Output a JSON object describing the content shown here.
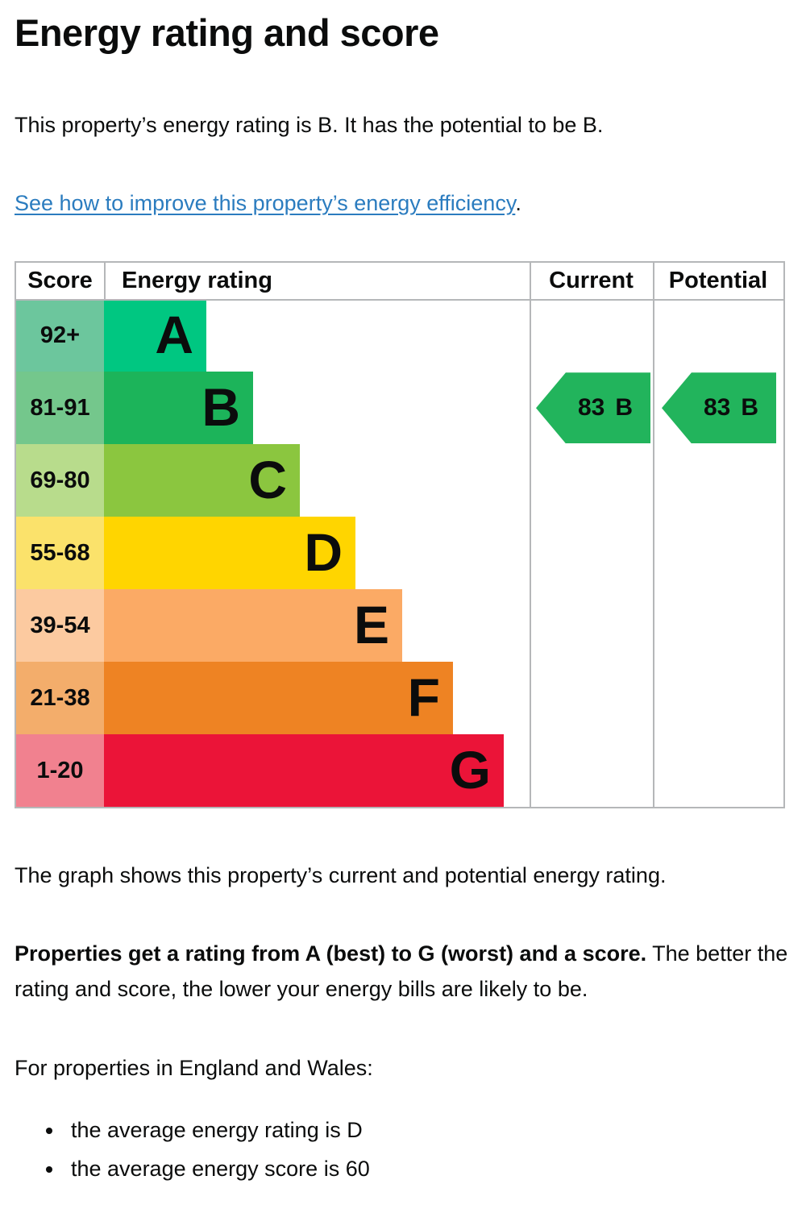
{
  "page": {
    "title": "Energy rating and score",
    "intro": "This property’s energy rating is B. It has the potential to be B.",
    "link_text": "See how to improve this property’s energy efficiency",
    "link_suffix": ".",
    "caption": "The graph shows this property’s current and potential energy rating.",
    "explain_bold": "Properties get a rating from A (best) to G (worst) and a score.",
    "explain_rest": " The better the rating and score, the lower your energy bills are likely to be.",
    "regional_heading": "For properties in England and Wales:",
    "bullets": [
      "the average energy rating is D",
      "the average energy score is 60"
    ]
  },
  "chart": {
    "headers": {
      "score": "Score",
      "rating": "Energy rating",
      "current": "Current",
      "potential": "Potential"
    },
    "bands": [
      {
        "score": "92+",
        "letter": "A",
        "color": "#00c781",
        "score_bg": "#6cc69d",
        "width_pct": 24
      },
      {
        "score": "81-91",
        "letter": "B",
        "color": "#1cb45a",
        "score_bg": "#74c78c",
        "width_pct": 35
      },
      {
        "score": "69-80",
        "letter": "C",
        "color": "#8bc63f",
        "score_bg": "#b8dc8c",
        "width_pct": 46
      },
      {
        "score": "55-68",
        "letter": "D",
        "color": "#ffd500",
        "score_bg": "#fbe26b",
        "width_pct": 59
      },
      {
        "score": "39-54",
        "letter": "E",
        "color": "#fbaa65",
        "score_bg": "#fccaa0",
        "width_pct": 70
      },
      {
        "score": "21-38",
        "letter": "F",
        "color": "#ee8323",
        "score_bg": "#f3ad6b",
        "width_pct": 82
      },
      {
        "score": "1-20",
        "letter": "G",
        "color": "#eb1438",
        "score_bg": "#f1818f",
        "width_pct": 94
      }
    ],
    "current": {
      "value": "83",
      "letter": "B",
      "band_index": 1,
      "color": "#22b45c"
    },
    "potential": {
      "value": "83",
      "letter": "B",
      "band_index": 1,
      "color": "#22b45c"
    }
  },
  "chart_data": {
    "type": "bar",
    "title": "EPC energy efficiency bands",
    "categories": [
      "A",
      "B",
      "C",
      "D",
      "E",
      "F",
      "G"
    ],
    "score_ranges": [
      "92+",
      "81-91",
      "69-80",
      "55-68",
      "39-54",
      "21-38",
      "1-20"
    ],
    "relative_bar_widths_pct": [
      24,
      35,
      46,
      59,
      70,
      82,
      94
    ],
    "current_rating": {
      "score": 83,
      "band": "B"
    },
    "potential_rating": {
      "score": 83,
      "band": "B"
    },
    "legend_position": "none",
    "grid": false
  },
  "colors": {
    "text": "#0b0c0c",
    "link": "#2b7cbf",
    "table_border": "#b5b7b9",
    "arrow": "#22b45c"
  }
}
